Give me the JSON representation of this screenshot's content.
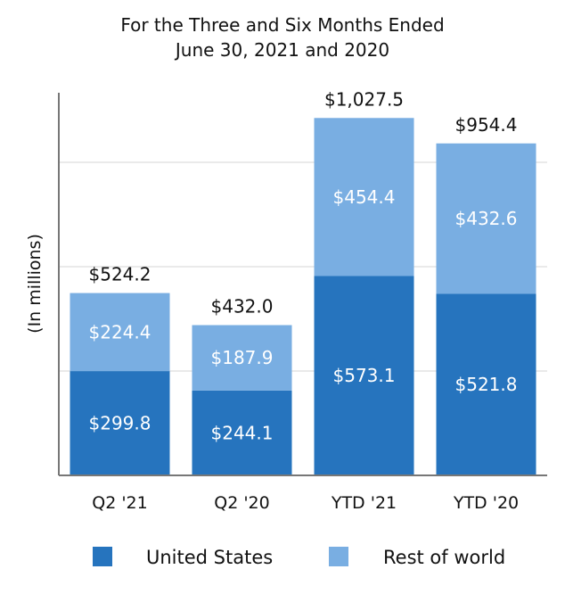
{
  "chart_data": {
    "type": "bar",
    "stacked": true,
    "title": [
      "For the Three and Six Months Ended",
      "June 30, 2021 and 2020"
    ],
    "ylabel": "(In millions)",
    "xlabel": "",
    "categories": [
      "Q2 '21",
      "Q2 '20",
      "YTD '21",
      "YTD '20"
    ],
    "series": [
      {
        "name": "United States",
        "color": "#2674be",
        "values": [
          299.8,
          244.1,
          573.1,
          521.8
        ],
        "labels": [
          "$299.8",
          "$244.1",
          "$573.1",
          "$521.8"
        ]
      },
      {
        "name": "Rest of world",
        "color": "#79aee2",
        "values": [
          224.4,
          187.9,
          454.4,
          432.6
        ],
        "labels": [
          "$224.4",
          "$187.9",
          "$454.4",
          "$432.6"
        ]
      }
    ],
    "totals": [
      524.2,
      432.0,
      1027.5,
      954.4
    ],
    "total_labels": [
      "$524.2",
      "$432.0",
      "$1,027.5",
      "$954.4"
    ],
    "ylim": [
      0,
      1100
    ],
    "gridlines": [
      300,
      600,
      900
    ],
    "grid": true,
    "legend_position": "bottom-center"
  }
}
